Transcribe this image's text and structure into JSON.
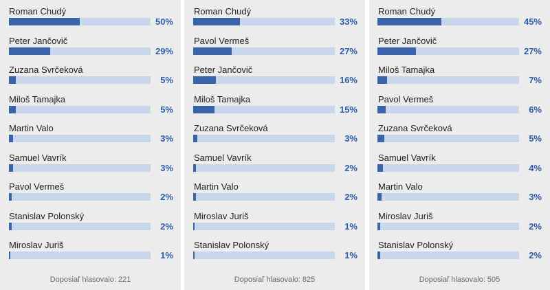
{
  "colors": {
    "panel_bg": "#ececec",
    "bar_fill": "#3a64a9",
    "bar_track": "#c9d7ec",
    "percent_text": "#2f5ca6"
  },
  "polls": [
    {
      "footer": "Doposiaľ hlasovalo: 221",
      "rows": [
        {
          "name": "Roman Chudý",
          "percent": "50%",
          "value": 50
        },
        {
          "name": "Peter Jančovič",
          "percent": "29%",
          "value": 29
        },
        {
          "name": "Zuzana Svrčeková",
          "percent": "5%",
          "value": 5
        },
        {
          "name": "Miloš Tamajka",
          "percent": "5%",
          "value": 5
        },
        {
          "name": "Martin Valo",
          "percent": "3%",
          "value": 3
        },
        {
          "name": "Samuel Vavrík",
          "percent": "3%",
          "value": 3
        },
        {
          "name": "Pavol Vermeš",
          "percent": "2%",
          "value": 2
        },
        {
          "name": "Stanislav Polonský",
          "percent": "2%",
          "value": 2
        },
        {
          "name": "Miroslav Juriš",
          "percent": "1%",
          "value": 1
        }
      ]
    },
    {
      "footer": "Doposiaľ hlasovalo: 825",
      "rows": [
        {
          "name": "Roman Chudý",
          "percent": "33%",
          "value": 33
        },
        {
          "name": "Pavol Vermeš",
          "percent": "27%",
          "value": 27
        },
        {
          "name": "Peter Jančovič",
          "percent": "16%",
          "value": 16
        },
        {
          "name": "Miloš Tamajka",
          "percent": "15%",
          "value": 15
        },
        {
          "name": "Zuzana Svrčeková",
          "percent": "3%",
          "value": 3
        },
        {
          "name": "Samuel Vavrík",
          "percent": "2%",
          "value": 2
        },
        {
          "name": "Martin Valo",
          "percent": "2%",
          "value": 2
        },
        {
          "name": "Miroslav Juriš",
          "percent": "1%",
          "value": 1
        },
        {
          "name": "Stanislav Polonský",
          "percent": "1%",
          "value": 1
        }
      ]
    },
    {
      "footer": "Doposiaľ hlasovalo: 505",
      "rows": [
        {
          "name": "Roman Chudý",
          "percent": "45%",
          "value": 45
        },
        {
          "name": "Peter Jančovič",
          "percent": "27%",
          "value": 27
        },
        {
          "name": "Miloš Tamajka",
          "percent": "7%",
          "value": 7
        },
        {
          "name": "Pavol Vermeš",
          "percent": "6%",
          "value": 6
        },
        {
          "name": "Zuzana Svrčeková",
          "percent": "5%",
          "value": 5
        },
        {
          "name": "Samuel Vavrík",
          "percent": "4%",
          "value": 4
        },
        {
          "name": "Martin Valo",
          "percent": "3%",
          "value": 3
        },
        {
          "name": "Miroslav Juriš",
          "percent": "2%",
          "value": 2
        },
        {
          "name": "Stanislav Polonský",
          "percent": "2%",
          "value": 2
        }
      ]
    }
  ]
}
